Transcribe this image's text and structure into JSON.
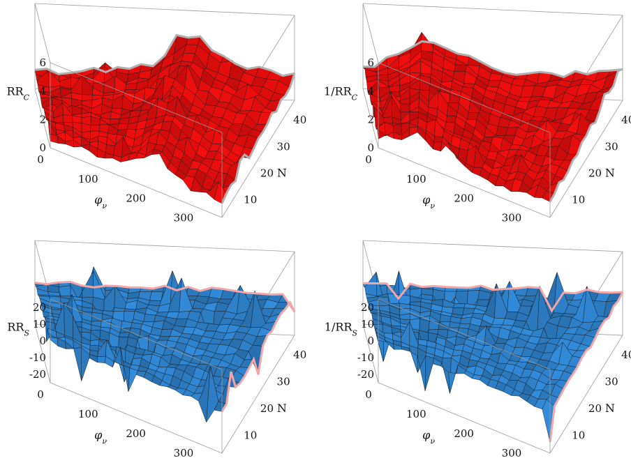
{
  "chart_data": [
    {
      "type": "surface3d",
      "panel": "top-left",
      "zlabel": "RR",
      "zlabel_sub": "C",
      "xlabel": "φ",
      "xlabel_sub": "ν",
      "ylabel": "N",
      "x_ticks": [
        "0",
        "100",
        "200",
        "300"
      ],
      "y_ticks": [
        "10",
        "20",
        "30",
        "40"
      ],
      "z_ticks": [
        "0",
        "2",
        "4",
        "6"
      ],
      "xlim": [
        0,
        360
      ],
      "ylim": [
        1,
        45
      ],
      "zlim": [
        0,
        6
      ],
      "surface_color": "#e01010",
      "edge_color": "#b0b0b0",
      "profile_phi": [
        0,
        40,
        80,
        120,
        160,
        200,
        220,
        240,
        280,
        320,
        360
      ],
      "profile_rr": [
        1.2,
        1.3,
        1.5,
        1.7,
        2.0,
        3.5,
        4.5,
        3.4,
        2.4,
        1.9,
        1.7
      ]
    },
    {
      "type": "surface3d",
      "panel": "top-right",
      "zlabel": "1/RR",
      "zlabel_sub": "C",
      "xlabel": "φ",
      "xlabel_sub": "ν",
      "ylabel": "N",
      "x_ticks": [
        "0",
        "100",
        "200",
        "300"
      ],
      "y_ticks": [
        "10",
        "20",
        "30",
        "40"
      ],
      "z_ticks": [
        "0",
        "2",
        "4",
        "6"
      ],
      "xlim": [
        0,
        360
      ],
      "ylim": [
        1,
        45
      ],
      "zlim": [
        0,
        6
      ],
      "surface_color": "#e01010",
      "edge_color": "#b0b0b0",
      "profile_phi": [
        0,
        40,
        80,
        120,
        160,
        200,
        220,
        240,
        280,
        320,
        360
      ],
      "profile_rr": [
        1.5,
        2.2,
        3.6,
        3.0,
        2.5,
        1.7,
        1.4,
        1.5,
        1.7,
        1.9,
        2.1
      ]
    },
    {
      "type": "surface3d",
      "panel": "bottom-left",
      "zlabel": "RR",
      "zlabel_sub": "S",
      "xlabel": "φ",
      "xlabel_sub": "ν",
      "ylabel": "N",
      "x_ticks": [
        "0",
        "100",
        "200",
        "300"
      ],
      "y_ticks": [
        "10",
        "20",
        "30",
        "40"
      ],
      "z_ticks": [
        "-20",
        "-10",
        "0",
        "10",
        "20"
      ],
      "xlim": [
        0,
        360
      ],
      "ylim": [
        1,
        45
      ],
      "zlim": [
        -25,
        25
      ],
      "surface_color": "#3a8fd8",
      "edge_color": "#f4a6a6"
    },
    {
      "type": "surface3d",
      "panel": "bottom-right",
      "zlabel": "1/RR",
      "zlabel_sub": "S",
      "xlabel": "φ",
      "xlabel_sub": "ν",
      "ylabel": "N",
      "x_ticks": [
        "0",
        "100",
        "200",
        "300"
      ],
      "y_ticks": [
        "10",
        "20",
        "30",
        "40"
      ],
      "z_ticks": [
        "-20",
        "-10",
        "0",
        "10",
        "20"
      ],
      "xlim": [
        0,
        360
      ],
      "ylim": [
        1,
        45
      ],
      "zlim": [
        -25,
        25
      ],
      "surface_color": "#3a8fd8",
      "edge_color": "#f4a6a6"
    }
  ]
}
